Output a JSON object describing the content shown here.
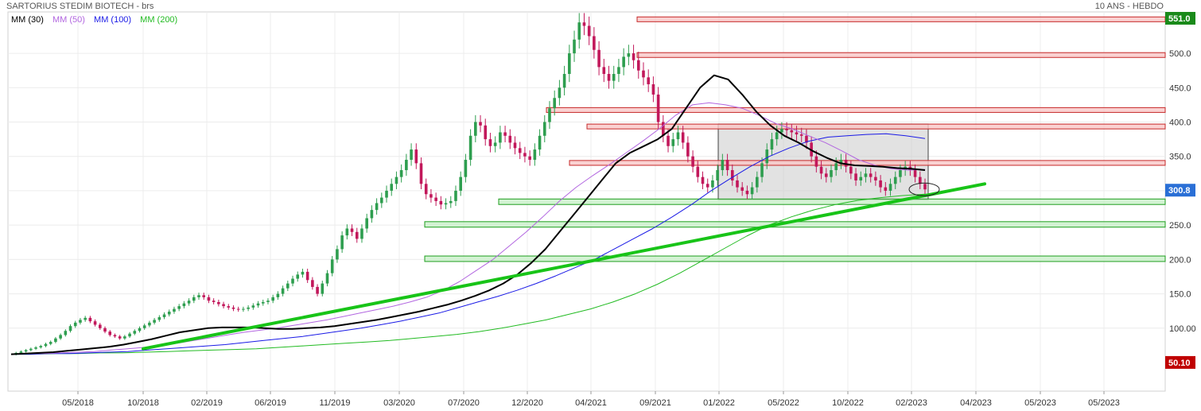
{
  "header": {
    "title": "SARTORIUS STEDIM BIOTECH - brs",
    "period": "10 ANS - HEBDO"
  },
  "legend": [
    {
      "label": "MM (30)",
      "color": "#000000"
    },
    {
      "label": "MM (50)",
      "color": "#b266e0"
    },
    {
      "label": "MM (100)",
      "color": "#1a1ae6"
    },
    {
      "label": "MM (200)",
      "color": "#22bb22"
    }
  ],
  "chart_data": {
    "type": "candlestick",
    "ylim": [
      10,
      565
    ],
    "y_ticks": [
      100,
      150,
      200,
      250,
      300,
      350,
      400,
      450,
      500
    ],
    "y_tick_labels": [
      "100.00",
      "150.0",
      "200.0",
      "250.0",
      "300.0",
      "350.0",
      "400.0",
      "450.0",
      "500.0"
    ],
    "x_tick_labels": [
      "05/2018",
      "10/2018",
      "02/2019",
      "06/2019",
      "11/2019",
      "03/2020",
      "07/2020",
      "12/2020",
      "04/2021",
      "09/2021",
      "01/2022",
      "05/2022",
      "10/2022",
      "02/2023",
      "04/2023",
      "05/2023",
      "05/2023"
    ],
    "price_badges": [
      {
        "label": "551.0",
        "value": 551.0,
        "color": "#1a8a1a"
      },
      {
        "label": "300.8",
        "value": 300.8,
        "color": "#2a6fd6"
      },
      {
        "label": "50.10",
        "value": 50.1,
        "color": "#c00000"
      }
    ],
    "resistance_zones": [
      {
        "low": 546,
        "high": 553
      },
      {
        "low": 494,
        "high": 501
      },
      {
        "low": 414,
        "high": 421
      },
      {
        "low": 390,
        "high": 397
      },
      {
        "low": 337,
        "high": 344
      }
    ],
    "support_zones": [
      {
        "low": 280,
        "high": 288
      },
      {
        "low": 247,
        "high": 255
      },
      {
        "low": 197,
        "high": 205
      }
    ],
    "range_box": {
      "low": 287,
      "high": 397
    },
    "trendline": [
      {
        "x": "10/2018",
        "y": 70
      },
      {
        "x": "04/2023",
        "y": 310
      }
    ],
    "highlight_ellipse": {
      "x": "02/2023",
      "y": 302
    },
    "price": [
      62,
      64,
      66,
      68,
      70,
      72,
      74,
      77,
      80,
      85,
      90,
      96,
      103,
      108,
      112,
      115,
      110,
      105,
      100,
      95,
      90,
      88,
      85,
      88,
      92,
      96,
      100,
      104,
      108,
      112,
      116,
      120,
      124,
      128,
      132,
      136,
      140,
      145,
      148,
      145,
      140,
      138,
      135,
      132,
      130,
      128,
      127,
      128,
      130,
      133,
      136,
      138,
      140,
      145,
      150,
      158,
      165,
      172,
      178,
      182,
      170,
      160,
      150,
      165,
      180,
      200,
      215,
      235,
      245,
      240,
      230,
      245,
      260,
      272,
      282,
      290,
      300,
      310,
      320,
      330,
      345,
      360,
      340,
      310,
      295,
      290,
      285,
      280,
      282,
      285,
      300,
      320,
      345,
      380,
      400,
      395,
      375,
      365,
      370,
      385,
      380,
      370,
      362,
      355,
      350,
      345,
      360,
      380,
      400,
      420,
      435,
      450,
      470,
      500,
      520,
      545,
      540,
      525,
      505,
      480,
      470,
      460,
      470,
      480,
      495,
      500,
      490,
      475,
      465,
      455,
      440,
      400,
      380,
      365,
      375,
      385,
      370,
      350,
      335,
      320,
      310,
      305,
      315,
      330,
      345,
      330,
      315,
      305,
      300,
      295,
      305,
      320,
      340,
      360,
      375,
      385,
      390,
      388,
      385,
      382,
      380,
      370,
      350,
      335,
      325,
      320,
      330,
      340,
      345,
      335,
      325,
      315,
      320,
      325,
      320,
      315,
      305,
      300,
      310,
      320,
      330,
      335,
      330,
      320,
      310,
      302
    ],
    "ma": [
      {
        "name": "MM (30)",
        "values": [
          62,
          63,
          64,
          65,
          67,
          69,
          71,
          73,
          76,
          80,
          84,
          89,
          94,
          97,
          100,
          101,
          101,
          101,
          100,
          99,
          99,
          100,
          101,
          103,
          106,
          109,
          112,
          116,
          120,
          124,
          129,
          134,
          140,
          147,
          155,
          165,
          178,
          195,
          215,
          240,
          265,
          290,
          315,
          340,
          355,
          365,
          375,
          390,
          420,
          450,
          468,
          462,
          440,
          415,
          395,
          380,
          370,
          358,
          348,
          340,
          337,
          336,
          335,
          333,
          332,
          330
        ]
      },
      {
        "name": "MM (50)",
        "values": [
          62,
          63,
          63,
          64,
          65,
          66,
          68,
          70,
          72,
          75,
          78,
          82,
          86,
          90,
          94,
          97,
          100,
          104,
          108,
          112,
          117,
          122,
          127,
          132,
          138,
          145,
          155,
          168,
          184,
          200,
          220,
          240,
          262,
          285,
          305,
          322,
          338,
          355,
          372,
          390,
          410,
          425,
          428,
          425,
          420,
          410,
          398,
          390,
          380,
          370,
          358,
          345,
          337,
          332,
          330,
          331
        ]
      },
      {
        "name": "MM (100)",
        "values": [
          62,
          62,
          63,
          63,
          64,
          65,
          66,
          68,
          70,
          72,
          74,
          76,
          79,
          82,
          85,
          88,
          92,
          96,
          100,
          105,
          110,
          116,
          122,
          130,
          138,
          146,
          155,
          165,
          176,
          188,
          200,
          215,
          230,
          245,
          262,
          280,
          300,
          318,
          335,
          350,
          362,
          372,
          378,
          380,
          382,
          383,
          380,
          376
        ]
      },
      {
        "name": "MM (200)",
        "values": [
          62,
          62,
          63,
          63,
          64,
          64,
          65,
          66,
          67,
          68,
          69,
          70,
          72,
          74,
          76,
          78,
          80,
          82,
          85,
          88,
          91,
          95,
          100,
          106,
          112,
          120,
          128,
          138,
          150,
          164,
          180,
          198,
          216,
          234,
          250,
          262,
          272,
          280,
          286,
          290,
          293,
          295
        ]
      }
    ]
  }
}
